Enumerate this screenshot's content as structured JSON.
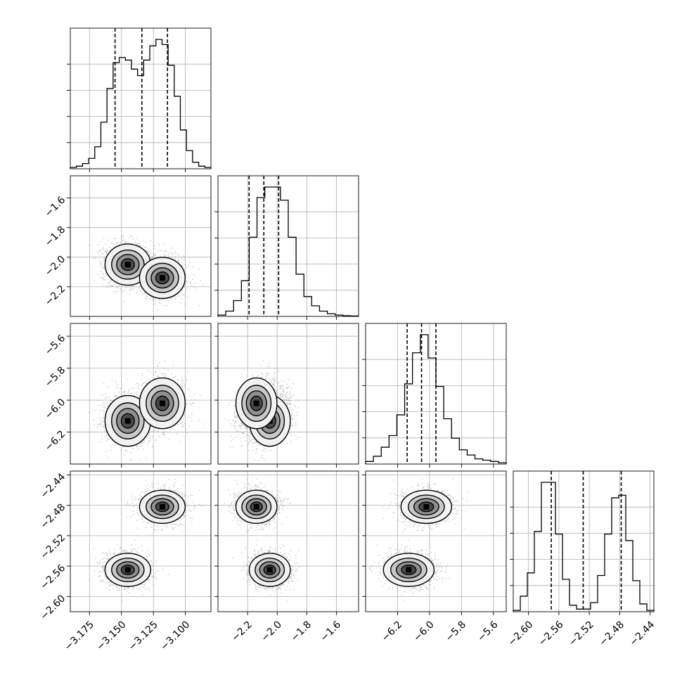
{
  "chart_data": {
    "type": "corner",
    "grid": true,
    "parameters": [
      {
        "range": [
          -3.19,
          -3.08
        ],
        "ticks": [
          -3.175,
          -3.15,
          -3.125,
          -3.1
        ],
        "tick_labels": [
          "−3.175",
          "−3.150",
          "−3.125",
          "−3.100"
        ],
        "quantiles": [
          -3.155,
          -3.134,
          -3.114
        ],
        "hist": [
          1,
          2,
          4,
          8,
          17,
          36,
          62,
          82,
          86,
          84,
          77,
          72,
          84,
          95,
          100,
          96,
          80,
          56,
          30,
          14,
          5,
          2,
          1
        ]
      },
      {
        "range": [
          -2.4,
          -1.45
        ],
        "ticks": [
          -2.2,
          -2.0,
          -1.8,
          -1.6
        ],
        "tick_labels": [
          "−2.2",
          "−2.0",
          "−1.8",
          "−1.6"
        ],
        "quantiles": [
          -2.19,
          -2.09,
          -1.99
        ],
        "hist": [
          1,
          4,
          12,
          27,
          60,
          90,
          98,
          98,
          88,
          60,
          32,
          15,
          8,
          4,
          2,
          1,
          0.5,
          0.3
        ]
      },
      {
        "range": [
          -6.4,
          -5.52
        ],
        "ticks": [
          -6.2,
          -6.0,
          -5.8,
          -5.6
        ],
        "tick_labels": [
          "−6.2",
          "−6.0",
          "−5.8",
          "−5.6"
        ],
        "quantiles": [
          -6.14,
          -6.05,
          -5.96
        ],
        "hist": [
          2,
          6,
          13,
          22,
          38,
          62,
          86,
          100,
          82,
          60,
          35,
          20,
          11,
          7,
          4,
          3,
          2,
          1
        ]
      },
      {
        "range": [
          -2.62,
          -2.435
        ],
        "ticks": [
          -2.6,
          -2.56,
          -2.52,
          -2.48,
          -2.44
        ],
        "tick_labels": [
          "−2.60",
          "−2.56",
          "−2.52",
          "−2.48",
          "−2.44"
        ],
        "quantiles": [
          -2.57,
          -2.528,
          -2.478
        ],
        "hist": [
          1,
          12,
          30,
          62,
          100,
          100,
          60,
          25,
          5,
          2,
          2,
          7,
          28,
          60,
          88,
          90,
          55,
          24,
          6,
          1
        ]
      }
    ],
    "y_tick_labels": {
      "1": [
        "−2.2",
        "−2.0",
        "−1.8",
        "−1.6"
      ],
      "2": [
        "−6.2",
        "−6.0",
        "−5.8",
        "−5.6"
      ],
      "3": [
        "−2.60",
        "−2.56",
        "−2.52",
        "−2.48",
        "−2.44"
      ]
    },
    "modes": [
      {
        "p0": -3.145,
        "p1": -2.05,
        "p2": -6.13,
        "p3": -2.565,
        "s0": 0.009,
        "s1": 0.07,
        "s2": 0.08,
        "s3": 0.011
      },
      {
        "p0": -3.118,
        "p1": -2.14,
        "p2": -6.02,
        "p3": -2.482,
        "s0": 0.009,
        "s1": 0.07,
        "s2": 0.08,
        "s3": 0.011
      }
    ],
    "colors": {
      "line": "#000000",
      "scatter": "#888888",
      "grid": "#b0b0b0"
    }
  }
}
